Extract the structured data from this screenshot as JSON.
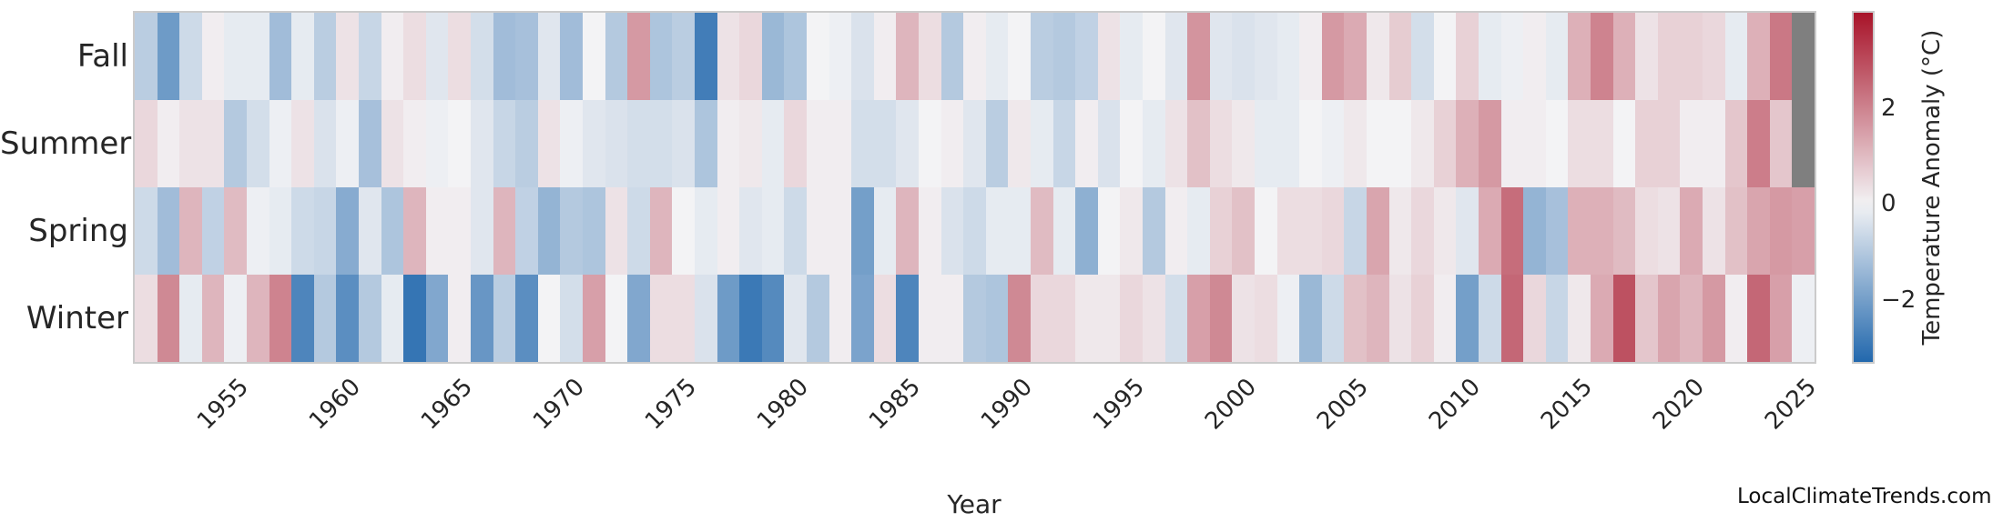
{
  "figure": {
    "watermark": "LocalClimateTrends.com"
  },
  "chart_data": {
    "type": "heatmap",
    "xlabel": "Year",
    "rows": [
      "Fall",
      "Summer",
      "Spring",
      "Winter"
    ],
    "years": [
      1951,
      1952,
      1953,
      1954,
      1955,
      1956,
      1957,
      1958,
      1959,
      1960,
      1961,
      1962,
      1963,
      1964,
      1965,
      1966,
      1967,
      1968,
      1969,
      1970,
      1971,
      1972,
      1973,
      1974,
      1975,
      1976,
      1977,
      1978,
      1979,
      1980,
      1981,
      1982,
      1983,
      1984,
      1985,
      1986,
      1987,
      1988,
      1989,
      1990,
      1991,
      1992,
      1993,
      1994,
      1995,
      1996,
      1997,
      1998,
      1999,
      2000,
      2001,
      2002,
      2003,
      2004,
      2005,
      2006,
      2007,
      2008,
      2009,
      2010,
      2011,
      2012,
      2013,
      2014,
      2015,
      2016,
      2017,
      2018,
      2019,
      2020,
      2021,
      2022,
      2023,
      2024,
      2025
    ],
    "x_tick_labels": [
      "1955",
      "1960",
      "1965",
      "1970",
      "1975",
      "1980",
      "1985",
      "1990",
      "1995",
      "2000",
      "2005",
      "2010",
      "2015",
      "2020",
      "2025"
    ],
    "series": [
      {
        "name": "Fall",
        "values": [
          -0.9,
          -2.1,
          -0.6,
          0.1,
          -0.2,
          -0.2,
          -1.3,
          -0.2,
          -0.9,
          0.3,
          -0.7,
          0.1,
          0.4,
          -0.3,
          0.4,
          -0.5,
          -1.3,
          -1.2,
          -0.3,
          -1.3,
          0.0,
          -1.0,
          1.6,
          -1.1,
          -0.9,
          -2.8,
          0.3,
          0.5,
          -1.4,
          -1.1,
          0.0,
          -0.1,
          -0.4,
          0.1,
          1.1,
          0.4,
          -1.0,
          0.1,
          -0.2,
          0.0,
          -0.9,
          -1.0,
          -0.8,
          0.3,
          -0.2,
          0.0,
          -0.3,
          1.7,
          -0.3,
          -0.4,
          -0.3,
          -0.2,
          0.1,
          1.6,
          1.3,
          0.2,
          0.7,
          -0.5,
          0.0,
          0.6,
          -0.2,
          -0.1,
          0.1,
          -0.2,
          1.2,
          2.0,
          1.2,
          0.3,
          0.6,
          0.6,
          0.5,
          -0.2,
          1.2,
          2.2,
          null
        ]
      },
      {
        "name": "Summer",
        "values": [
          0.5,
          0.1,
          0.3,
          0.3,
          -1.0,
          -0.5,
          -0.1,
          0.3,
          -0.4,
          -0.1,
          -1.2,
          0.3,
          0.1,
          -0.1,
          0.0,
          -0.3,
          -0.7,
          -0.9,
          0.3,
          -0.1,
          -0.3,
          -0.4,
          -0.5,
          -0.5,
          -0.4,
          -1.1,
          0.1,
          0.2,
          -0.2,
          0.5,
          0.1,
          0.1,
          -0.5,
          -0.5,
          -0.3,
          0.0,
          0.1,
          -0.3,
          -0.9,
          0.2,
          -0.2,
          -0.7,
          0.1,
          -0.4,
          0.0,
          -0.2,
          0.3,
          0.9,
          0.4,
          0.2,
          -0.2,
          -0.2,
          0.0,
          -0.1,
          0.2,
          0.0,
          0.0,
          0.2,
          0.6,
          1.2,
          1.6,
          0.1,
          0.1,
          0.0,
          0.4,
          0.4,
          0.0,
          0.6,
          0.6,
          0.1,
          0.1,
          0.8,
          2.1,
          0.8,
          null
        ]
      },
      {
        "name": "Spring",
        "values": [
          -0.6,
          -1.3,
          1.1,
          -0.8,
          1.0,
          -0.1,
          -0.2,
          -0.6,
          -0.7,
          -1.7,
          -0.3,
          -1.1,
          1.1,
          0.1,
          0.1,
          -0.3,
          1.1,
          -0.8,
          -1.5,
          -1.0,
          -1.1,
          0.3,
          -0.6,
          1.1,
          0.0,
          -0.2,
          0.1,
          -0.3,
          -0.2,
          -0.6,
          0.1,
          0.1,
          -2.0,
          -0.2,
          1.1,
          0.1,
          -0.4,
          -0.6,
          -0.2,
          -0.2,
          1.0,
          -0.2,
          -1.6,
          0.0,
          0.2,
          -1.0,
          0.1,
          -0.2,
          0.6,
          0.9,
          0.0,
          0.4,
          0.4,
          0.5,
          -0.7,
          1.4,
          0.2,
          0.5,
          0.2,
          -0.3,
          1.3,
          2.4,
          -1.5,
          -1.2,
          1.2,
          1.2,
          1.0,
          0.4,
          0.3,
          1.3,
          0.3,
          0.9,
          1.4,
          1.6,
          1.5
        ]
      },
      {
        "name": "Winter",
        "values": [
          0.4,
          1.9,
          -0.2,
          1.1,
          -0.1,
          1.1,
          2.0,
          -2.6,
          -1.0,
          -2.4,
          -1.0,
          -0.2,
          -3.0,
          -1.8,
          0.1,
          -2.2,
          -0.9,
          -2.4,
          0.0,
          -0.5,
          1.5,
          0.0,
          -1.8,
          0.4,
          0.4,
          -0.4,
          -2.1,
          -2.9,
          -2.5,
          -0.3,
          -1.0,
          0.1,
          -1.9,
          0.4,
          -2.6,
          0.1,
          0.1,
          -1.0,
          -1.1,
          1.9,
          0.5,
          0.5,
          0.2,
          0.2,
          0.5,
          0.3,
          -0.5,
          1.5,
          1.9,
          0.3,
          0.4,
          -0.1,
          -1.4,
          -0.6,
          0.9,
          1.1,
          0.3,
          0.6,
          0.1,
          -2.0,
          -0.6,
          2.5,
          0.5,
          -0.7,
          0.2,
          1.3,
          2.9,
          0.8,
          1.4,
          1.1,
          1.6,
          0.1,
          2.5,
          1.5,
          -0.1
        ]
      }
    ],
    "colorbar": {
      "label": "Temperature Anomaly (°C)",
      "ticks": [
        {
          "value": 2,
          "label": "2"
        },
        {
          "value": 0,
          "label": "0"
        },
        {
          "value": -2,
          "label": "−2"
        }
      ],
      "vmin": -3.3,
      "vmax": 4.0
    },
    "colors": {
      "negative_end": "#2268ad",
      "midpoint": "#f3f3f5",
      "positive_end": "#a81329",
      "missing": "#7f7f7f"
    }
  }
}
